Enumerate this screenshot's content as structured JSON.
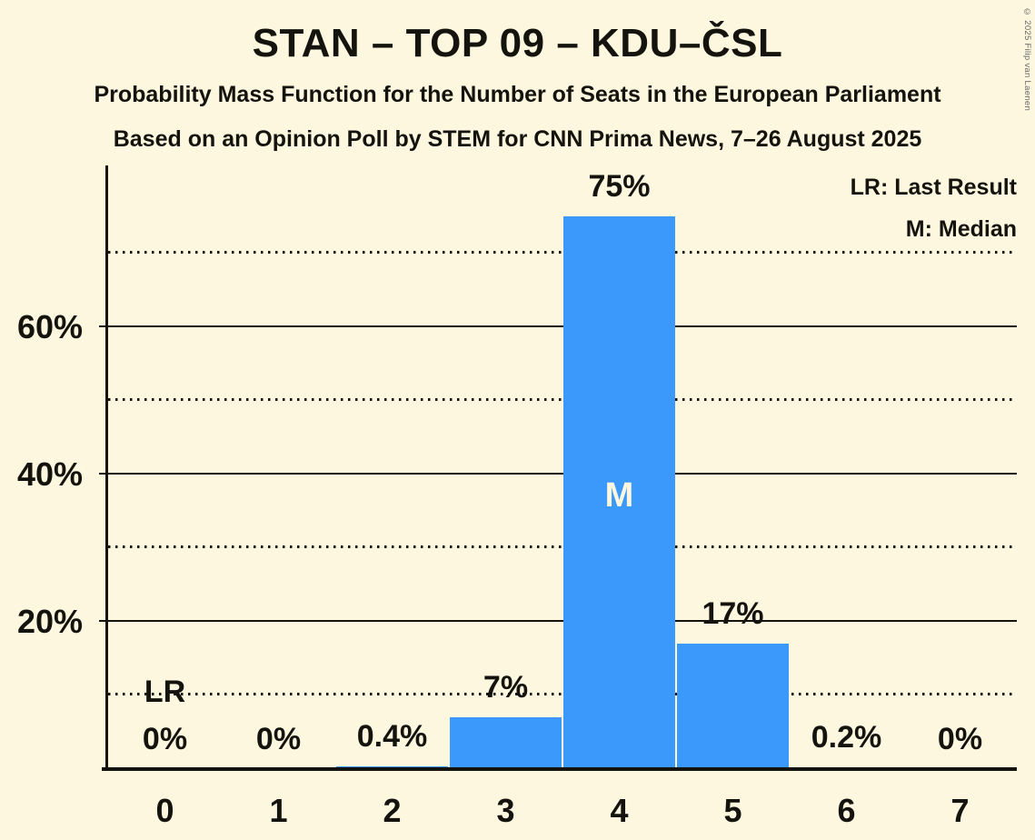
{
  "header": {
    "title": "STAN – TOP 09 – KDU–ČSL",
    "subtitle": "Probability Mass Function for the Number of Seats in the European Parliament",
    "source": "Based on an Opinion Poll by STEM for CNN Prima News, 7–26 August 2025"
  },
  "copyright": "© 2025 Filip van Laenen",
  "legend": {
    "lr": "LR: Last Result",
    "m": "M: Median"
  },
  "colors": {
    "background": "#FCF7DE",
    "bar": "#3B99FC",
    "text": "#14130E"
  },
  "chart_data": {
    "type": "bar",
    "title": "STAN – TOP 09 – KDU–ČSL",
    "xlabel": "",
    "ylabel": "",
    "categories": [
      "0",
      "1",
      "2",
      "3",
      "4",
      "5",
      "6",
      "7"
    ],
    "values": [
      0,
      0,
      0.4,
      7,
      75,
      17,
      0.2,
      0
    ],
    "bar_labels": [
      "0%",
      "0%",
      "0.4%",
      "7%",
      "75%",
      "17%",
      "0.2%",
      "0%"
    ],
    "ylim": [
      0,
      82
    ],
    "y_axis_ticks": [
      {
        "value": 20,
        "label": "20%"
      },
      {
        "value": 40,
        "label": "40%"
      },
      {
        "value": 60,
        "label": "60%"
      }
    ],
    "solid_gridlines": [
      20,
      40,
      60
    ],
    "dotted_gridlines": [
      10,
      30,
      50,
      70
    ],
    "grid": true,
    "legend_position": "top-right",
    "annotations": [
      {
        "type": "last_result",
        "label": "LR",
        "category": "0"
      },
      {
        "type": "median",
        "label": "M",
        "category": "4"
      }
    ]
  }
}
